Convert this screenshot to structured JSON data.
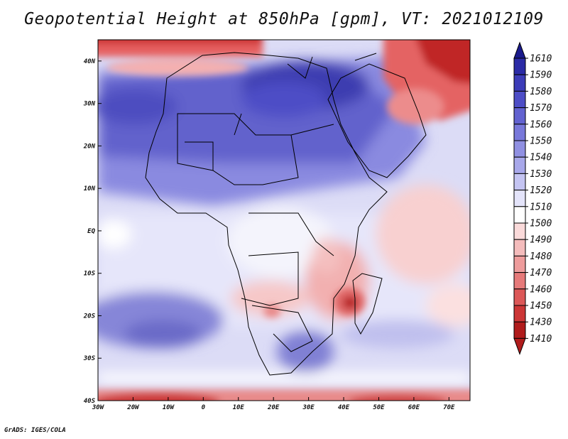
{
  "title": "Geopotential Height at 850hPa [gpm], VT: 2021012109",
  "credit": "GrADS: IGES/COLA",
  "axes": {
    "lat_ticks": [
      {
        "value": 40,
        "label": "40N"
      },
      {
        "value": 30,
        "label": "30N"
      },
      {
        "value": 20,
        "label": "20N"
      },
      {
        "value": 10,
        "label": "10N"
      },
      {
        "value": 0,
        "label": "EQ"
      },
      {
        "value": -10,
        "label": "10S"
      },
      {
        "value": -20,
        "label": "20S"
      },
      {
        "value": -30,
        "label": "30S"
      },
      {
        "value": -40,
        "label": "40S"
      }
    ],
    "lon_ticks": [
      {
        "value": -30,
        "label": "30W"
      },
      {
        "value": -20,
        "label": "20W"
      },
      {
        "value": -10,
        "label": "10W"
      },
      {
        "value": 0,
        "label": "0"
      },
      {
        "value": 10,
        "label": "10E"
      },
      {
        "value": 20,
        "label": "20E"
      },
      {
        "value": 30,
        "label": "30E"
      },
      {
        "value": 40,
        "label": "40E"
      },
      {
        "value": 50,
        "label": "50E"
      },
      {
        "value": 60,
        "label": "60E"
      },
      {
        "value": 70,
        "label": "70E"
      }
    ],
    "lat_range": [
      -40,
      45
    ],
    "lon_range": [
      -30,
      76
    ]
  },
  "colorbar": {
    "levels": [
      "1610",
      "1590",
      "1580",
      "1570",
      "1560",
      "1550",
      "1540",
      "1530",
      "1520",
      "1510",
      "1500",
      "1490",
      "1480",
      "1470",
      "1460",
      "1450",
      "1430",
      "1410"
    ],
    "colors": [
      "#1a1a8c",
      "#2b2ba6",
      "#3c3cb8",
      "#4d4dc6",
      "#6262d0",
      "#7878da",
      "#9090e2",
      "#a8a8ea",
      "#c4c4f2",
      "#e4e4fa",
      "#ffffff",
      "#fadada",
      "#f4bcbc",
      "#ee9c9c",
      "#e67a7a",
      "#dc5858",
      "#cc3636",
      "#b01c1c"
    ]
  }
}
